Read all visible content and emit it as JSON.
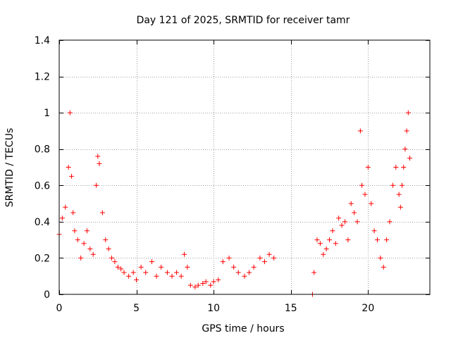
{
  "chart_data": {
    "type": "scatter",
    "title": "Day 121 of 2025, SRMTID for receiver tamr",
    "xlabel": "GPS time / hours",
    "ylabel": "SRMTID / TECUs",
    "xlim": [
      0,
      24.0
    ],
    "ylim": [
      0,
      1.4
    ],
    "xticks": [
      0,
      5,
      10,
      15,
      20
    ],
    "xtick_labels": [
      "0",
      "5",
      "10",
      "15",
      "20"
    ],
    "yticks": [
      0,
      0.2,
      0.4,
      0.6,
      0.8,
      1.0,
      1.2,
      1.4
    ],
    "ytick_labels": [
      "0",
      "0.2",
      "0.4",
      "0.6",
      "0.8",
      "1",
      "1.2",
      "1.4"
    ],
    "grid": true,
    "legend": "none",
    "colors": {
      "marker": "#ff0000",
      "grid": "#a0a0a0",
      "axis": "#000000"
    },
    "series": [
      {
        "name": "SRMTID",
        "marker": "plus",
        "x": [
          0.0,
          0.2,
          0.4,
          0.6,
          0.7,
          0.8,
          0.9,
          1.0,
          1.2,
          1.4,
          1.6,
          1.8,
          2.0,
          2.2,
          2.4,
          2.5,
          2.6,
          2.8,
          3.0,
          3.2,
          3.4,
          3.6,
          3.8,
          4.0,
          4.2,
          4.5,
          4.8,
          5.0,
          5.3,
          5.6,
          6.0,
          6.3,
          6.6,
          7.0,
          7.3,
          7.6,
          7.9,
          8.1,
          8.3,
          8.5,
          8.8,
          9.0,
          9.3,
          9.5,
          9.8,
          10.0,
          10.3,
          10.6,
          11.0,
          11.3,
          11.6,
          12.0,
          12.3,
          12.6,
          13.0,
          13.3,
          13.6,
          13.9,
          16.4,
          16.5,
          16.7,
          16.9,
          17.1,
          17.3,
          17.5,
          17.7,
          17.9,
          18.1,
          18.3,
          18.5,
          18.7,
          18.9,
          19.1,
          19.3,
          19.5,
          19.6,
          19.8,
          20.0,
          20.2,
          20.4,
          20.6,
          20.8,
          21.0,
          21.2,
          21.4,
          21.6,
          21.8,
          22.0,
          22.1,
          22.2,
          22.3,
          22.4,
          22.5,
          22.6,
          22.7
        ],
        "y": [
          0.33,
          0.42,
          0.48,
          0.7,
          1.0,
          0.65,
          0.45,
          0.35,
          0.3,
          0.2,
          0.28,
          0.35,
          0.25,
          0.22,
          0.6,
          0.76,
          0.72,
          0.45,
          0.3,
          0.25,
          0.2,
          0.18,
          0.15,
          0.14,
          0.12,
          0.1,
          0.12,
          0.08,
          0.15,
          0.12,
          0.18,
          0.1,
          0.15,
          0.12,
          0.1,
          0.12,
          0.1,
          0.22,
          0.15,
          0.05,
          0.04,
          0.05,
          0.06,
          0.07,
          0.05,
          0.07,
          0.08,
          0.18,
          0.2,
          0.15,
          0.12,
          0.1,
          0.12,
          0.15,
          0.2,
          0.18,
          0.22,
          0.2,
          0.0,
          0.12,
          0.3,
          0.28,
          0.22,
          0.25,
          0.3,
          0.35,
          0.28,
          0.42,
          0.38,
          0.4,
          0.3,
          0.5,
          0.45,
          0.4,
          0.9,
          0.6,
          0.55,
          0.7,
          0.5,
          0.35,
          0.3,
          0.2,
          0.15,
          0.3,
          0.4,
          0.6,
          0.7,
          0.55,
          0.48,
          0.6,
          0.7,
          0.8,
          0.9,
          1.0,
          0.75
        ]
      }
    ]
  }
}
